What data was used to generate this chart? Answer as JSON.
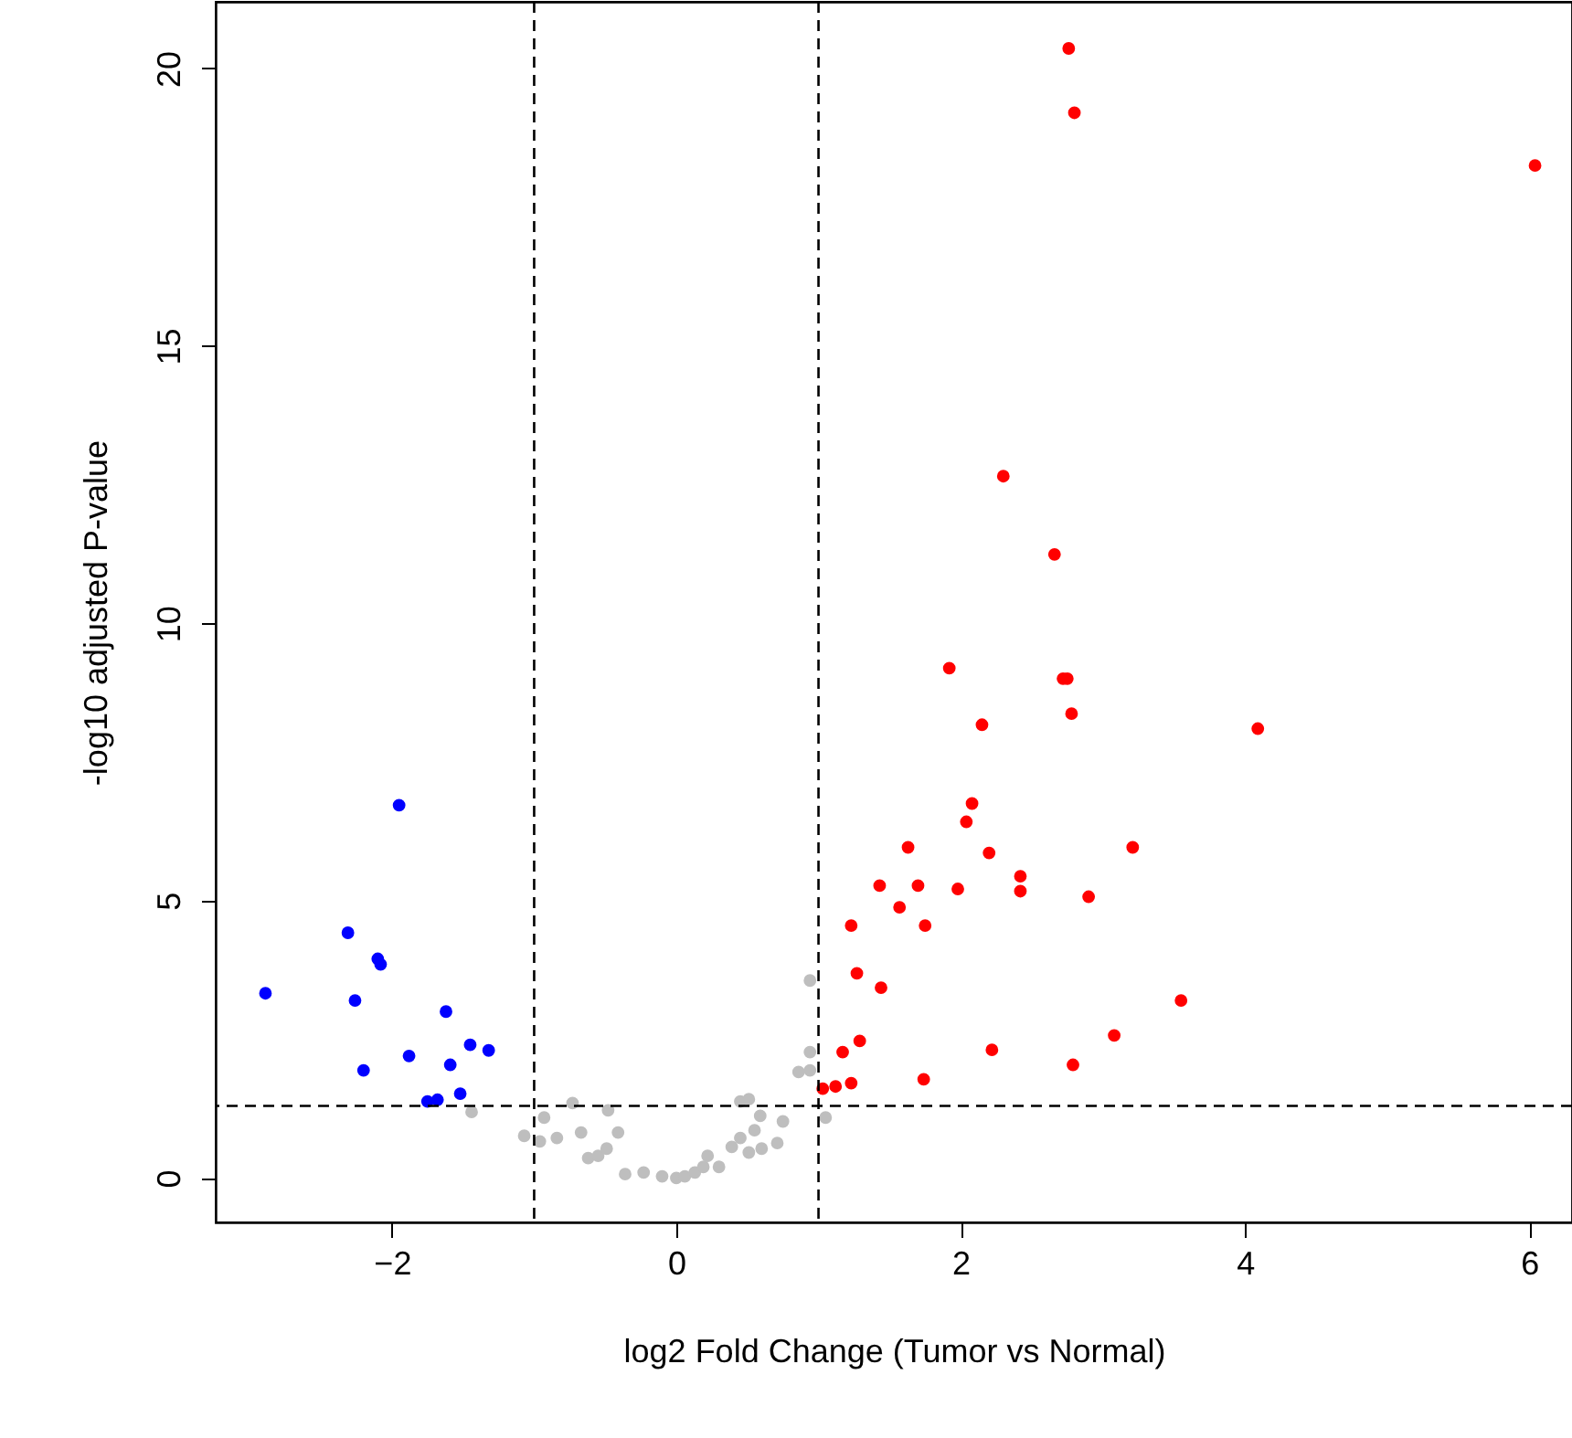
{
  "chart_data": {
    "type": "scatter",
    "xlabel": "log2 Fold Change (Tumor vs Normal)",
    "ylabel": "-log10 adjusted P-value",
    "xlim": [
      -3.24,
      6.3
    ],
    "ylim": [
      -0.8,
      21.2
    ],
    "xticks": [
      -2,
      0,
      2,
      4,
      6
    ],
    "yticks": [
      0,
      5,
      10,
      15,
      20
    ],
    "grid": false,
    "marker": "circle",
    "ref_lines": [
      {
        "axis": "x",
        "value": -1,
        "line_style": "dashed",
        "color": "#000000"
      },
      {
        "axis": "x",
        "value": 1,
        "line_style": "dashed",
        "color": "#000000"
      },
      {
        "axis": "y",
        "value": 1.3,
        "line_style": "dashed",
        "color": "#000000"
      }
    ],
    "series": [
      {
        "color": "#0000ff",
        "x": [
          -2.89,
          -2.31,
          -2.26,
          -2.2,
          -2.1,
          -2.08,
          -1.95,
          -1.88,
          -1.62,
          -1.59,
          -1.45,
          -1.32,
          -1.75,
          -1.68,
          -1.52
        ],
        "values": [
          3.33,
          4.42,
          3.2,
          1.94,
          3.95,
          3.85,
          6.72,
          2.2,
          3.0,
          2.04,
          2.4,
          2.3,
          1.38,
          1.41,
          1.52
        ]
      },
      {
        "color": "#bebebe",
        "x": [
          -1.44,
          -1.07,
          -0.96,
          -0.93,
          -0.84,
          -0.73,
          -0.67,
          -0.62,
          -0.55,
          -0.49,
          -0.48,
          -0.41,
          -0.36,
          -0.23,
          -0.1,
          0.0,
          0.06,
          0.13,
          0.19,
          0.22,
          0.3,
          0.39,
          0.45,
          0.45,
          0.51,
          0.51,
          0.55,
          0.59,
          0.6,
          0.71,
          0.75,
          0.86,
          0.94,
          0.94,
          0.94,
          1.05
        ],
        "values": [
          1.19,
          0.76,
          0.66,
          1.09,
          0.72,
          1.35,
          0.82,
          0.36,
          0.4,
          0.53,
          1.22,
          0.82,
          0.07,
          0.1,
          0.03,
          0.0,
          0.03,
          0.1,
          0.2,
          0.4,
          0.2,
          0.56,
          0.72,
          1.38,
          1.42,
          0.46,
          0.86,
          1.12,
          0.53,
          0.63,
          1.02,
          1.91,
          2.27,
          1.94,
          3.56,
          1.09
        ]
      },
      {
        "color": "#ff0000",
        "x": [
          2.76,
          2.8,
          6.04,
          2.3,
          2.66,
          1.92,
          2.72,
          2.75,
          2.78,
          2.15,
          4.09,
          2.08,
          2.04,
          1.63,
          2.2,
          3.21,
          2.42,
          2.42,
          1.43,
          1.7,
          1.98,
          2.9,
          1.57,
          1.23,
          1.75,
          1.27,
          1.44,
          3.55,
          3.08,
          1.29,
          1.17,
          2.22,
          2.79,
          1.74,
          1.23,
          1.12,
          1.03
        ],
        "values": [
          20.36,
          19.2,
          18.25,
          12.65,
          11.24,
          9.19,
          9.0,
          9.0,
          8.37,
          8.17,
          8.1,
          6.75,
          6.42,
          5.96,
          5.86,
          5.96,
          5.44,
          5.17,
          5.27,
          5.27,
          5.21,
          5.07,
          4.88,
          4.55,
          4.55,
          3.69,
          3.43,
          3.2,
          2.57,
          2.47,
          2.27,
          2.31,
          2.04,
          1.78,
          1.71,
          1.65,
          1.61
        ]
      }
    ]
  }
}
